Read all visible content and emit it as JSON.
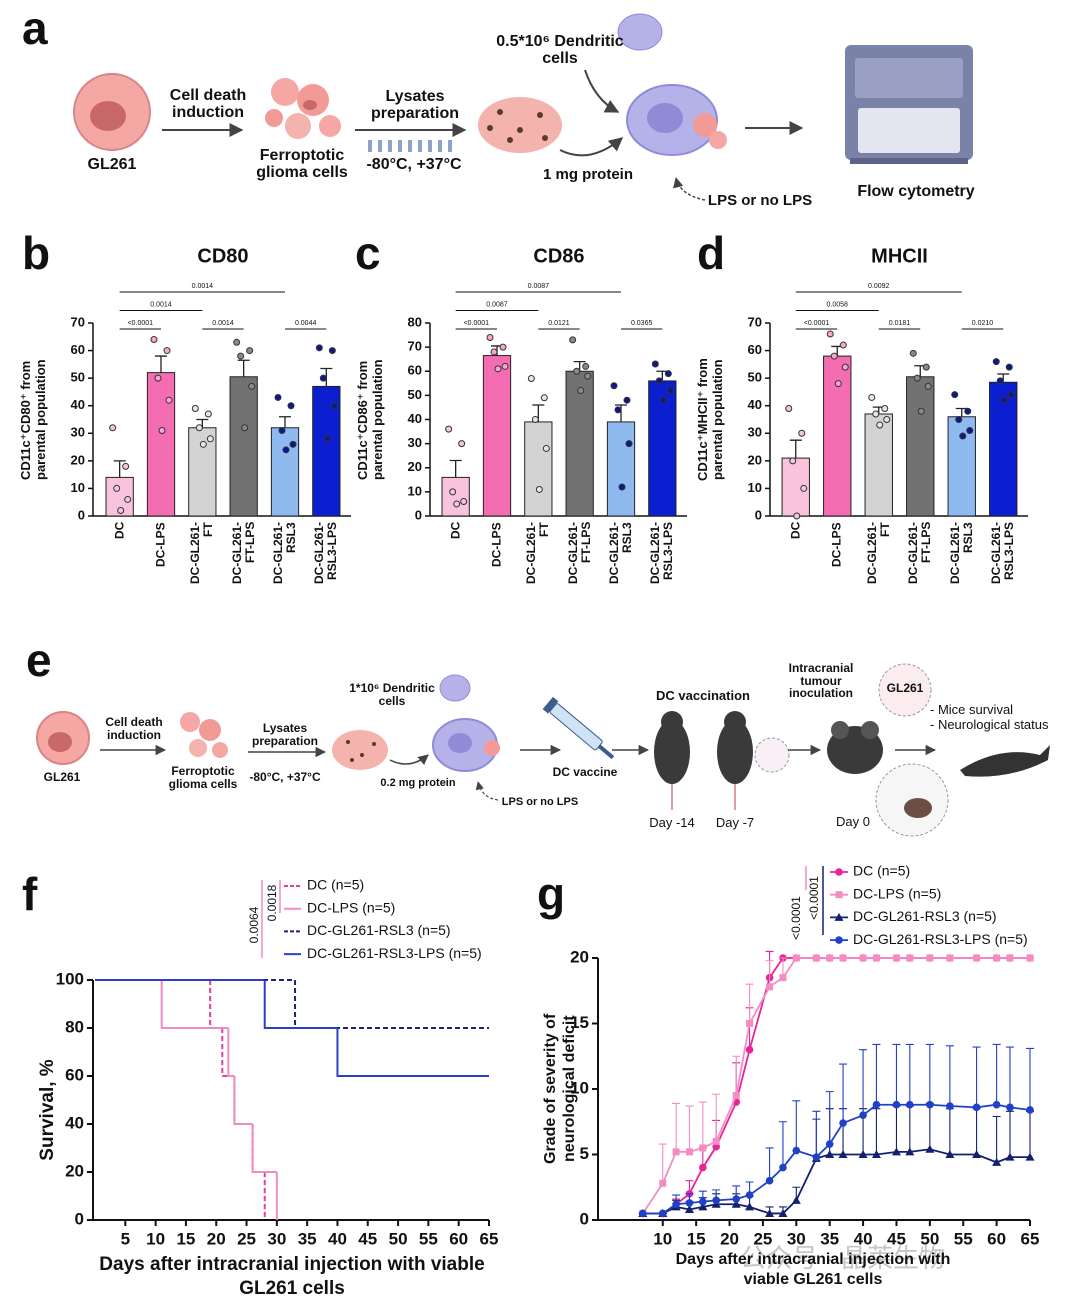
{
  "diagram_a": {
    "letter": "a",
    "gl261": "GL261",
    "step1": "Cell death induction",
    "cells": "Ferroptotic glioma cells",
    "step2": "Lysates preparation",
    "temps": "-80°C, +37°C",
    "dc": "0.5*10⁶ Dendritic cells",
    "protein": "1 mg protein",
    "lps": "LPS or no LPS",
    "readout": "Flow cytometry"
  },
  "diagram_e": {
    "letter": "e",
    "gl261": "GL261",
    "step1": "Cell death induction",
    "cells": "Ferroptotic glioma cells",
    "step2": "Lysates preparation",
    "temps": "-80°C, +37°C",
    "dc": "1*10⁶ Dendritic cells",
    "protein": "0.2 mg protein",
    "lps": "LPS or no LPS",
    "vaccine": "DC vaccine",
    "vaccination": "DC vaccination",
    "day1": "Day -14",
    "day2": "Day -7",
    "inoculation": "Intracranial tumour inoculation",
    "tumour": "GL261",
    "day0": "Day 0",
    "outcome1": "- Mice survival",
    "outcome2": "- Neurological status"
  },
  "chart_data": [
    {
      "letter": "b",
      "type": "bar",
      "title": "CD80",
      "ylabel": "CD11c⁺CD80⁺ from parental population",
      "categories": [
        "DC",
        "DC-LPS",
        "DC-GL261-FT",
        "DC-GL261-FT-LPS",
        "DC-GL261-RSL3",
        "DC-GL261-RSL3-LPS"
      ],
      "values": [
        14,
        52,
        32,
        50.5,
        32,
        47
      ],
      "errors": [
        6,
        6,
        3,
        6,
        4,
        6.5
      ],
      "points": [
        [
          32,
          18,
          10,
          6,
          2
        ],
        [
          64,
          60,
          50,
          42,
          31
        ],
        [
          39,
          37,
          32,
          28,
          26
        ],
        [
          63,
          60,
          58,
          47,
          32
        ],
        [
          43,
          40,
          31,
          26,
          24
        ],
        [
          61,
          60,
          50,
          40,
          28
        ]
      ],
      "colors": [
        "#f7c3dd",
        "#f46db3",
        "#d3d3d3",
        "#727272",
        "#8fbaf0",
        "#0b1fd0"
      ],
      "point_colors": [
        "#f3c6dc",
        "#f7a6cf",
        "#e6e6e6",
        "#8a8a8a",
        "#0a1a8c",
        "#0a1a8c"
      ],
      "ylim": [
        0,
        70
      ],
      "yticks": [
        0,
        10,
        20,
        30,
        40,
        50,
        60,
        70
      ],
      "brackets": [
        {
          "from": "DC",
          "to": "DC-LPS",
          "label": "<0.0001"
        },
        {
          "from": "DC-GL261-FT",
          "to": "DC-GL261-FT-LPS",
          "label": "0.0014"
        },
        {
          "from": "DC-GL261-RSL3",
          "to": "DC-GL261-RSL3-LPS",
          "label": "0.0044"
        },
        {
          "from": "DC",
          "to": "DC-GL261-FT",
          "label": "0.0014"
        },
        {
          "from": "DC",
          "to": "DC-GL261-RSL3",
          "label": "0.0014"
        }
      ]
    },
    {
      "letter": "c",
      "type": "bar",
      "title": "CD86",
      "ylabel": "CD11c⁺CD86⁺ from parental population",
      "categories": [
        "DC",
        "DC-LPS",
        "DC-GL261-FT",
        "DC-GL261-FT-LPS",
        "DC-GL261-RSL3",
        "DC-GL261-RSL3-LPS"
      ],
      "values": [
        16,
        66.5,
        39,
        60,
        39,
        56
      ],
      "errors": [
        7,
        4,
        7,
        4,
        7,
        4
      ],
      "points": [
        [
          36,
          30,
          10,
          6,
          5
        ],
        [
          74,
          70,
          68,
          62,
          61
        ],
        [
          57,
          49,
          40,
          28,
          11
        ],
        [
          73,
          62,
          60,
          58,
          52
        ],
        [
          54,
          48,
          44,
          30,
          12
        ],
        [
          63,
          59,
          56,
          52,
          48
        ]
      ],
      "colors": [
        "#f7c3dd",
        "#f46db3",
        "#d3d3d3",
        "#727272",
        "#8fbaf0",
        "#0b1fd0"
      ],
      "point_colors": [
        "#f3c6dc",
        "#f7a6cf",
        "#e6e6e6",
        "#8a8a8a",
        "#0a1a8c",
        "#0a1a8c"
      ],
      "ylim": [
        0,
        80
      ],
      "yticks": [
        0,
        10,
        20,
        30,
        40,
        50,
        60,
        70,
        80
      ],
      "brackets": [
        {
          "from": "DC",
          "to": "DC-LPS",
          "label": "<0.0001"
        },
        {
          "from": "DC-GL261-FT",
          "to": "DC-GL261-FT-LPS",
          "label": "0.0121"
        },
        {
          "from": "DC-GL261-RSL3",
          "to": "DC-GL261-RSL3-LPS",
          "label": "0.0365"
        },
        {
          "from": "DC",
          "to": "DC-GL261-FT",
          "label": "0.0087"
        },
        {
          "from": "DC",
          "to": "DC-GL261-RSL3",
          "label": "0.0087"
        }
      ]
    },
    {
      "letter": "d",
      "type": "bar",
      "title": "MHCII",
      "ylabel": "CD11c⁺MHCII⁺ from parental population",
      "categories": [
        "DC",
        "DC-LPS",
        "DC-GL261-FT",
        "DC-GL261-FT-LPS",
        "DC-GL261-RSL3",
        "DC-GL261-RSL3-LPS"
      ],
      "values": [
        21,
        58,
        37,
        50.5,
        36,
        48.5
      ],
      "errors": [
        6.5,
        3.5,
        2.5,
        4,
        3,
        3
      ],
      "points": [
        [
          39,
          30,
          20,
          10,
          0
        ],
        [
          66,
          62,
          58,
          54,
          48
        ],
        [
          43,
          39,
          37,
          35,
          33
        ],
        [
          59,
          54,
          50,
          47,
          38
        ],
        [
          44,
          38,
          35,
          31,
          29
        ],
        [
          56,
          54,
          49,
          44,
          42
        ]
      ],
      "colors": [
        "#f7c3dd",
        "#f46db3",
        "#d3d3d3",
        "#727272",
        "#8fbaf0",
        "#0b1fd0"
      ],
      "point_colors": [
        "#f3c6dc",
        "#f7a6cf",
        "#e6e6e6",
        "#8a8a8a",
        "#0a1a8c",
        "#0a1a8c"
      ],
      "ylim": [
        0,
        70
      ],
      "yticks": [
        0,
        10,
        20,
        30,
        40,
        50,
        60,
        70
      ],
      "brackets": [
        {
          "from": "DC",
          "to": "DC-LPS",
          "label": "<0.0001"
        },
        {
          "from": "DC-GL261-FT",
          "to": "DC-GL261-FT-LPS",
          "label": "0.0181"
        },
        {
          "from": "DC-GL261-RSL3",
          "to": "DC-GL261-RSL3-LPS",
          "label": "0.0210"
        },
        {
          "from": "DC",
          "to": "DC-GL261-FT",
          "label": "0.0058"
        },
        {
          "from": "DC",
          "to": "DC-GL261-RSL3",
          "label": "0.0092"
        }
      ]
    },
    {
      "letter": "f",
      "type": "step",
      "xlabel": "Days after intracranial injection with viable GL261 cells",
      "ylabel": "Survival, %",
      "xlim": [
        0,
        65
      ],
      "xticks": [
        5,
        10,
        15,
        20,
        25,
        30,
        35,
        40,
        45,
        50,
        55,
        60,
        65
      ],
      "ylim": [
        0,
        100
      ],
      "yticks": [
        0,
        20,
        40,
        60,
        80,
        100
      ],
      "series": [
        {
          "name": "DC (n=5)",
          "color": "#e0409a",
          "dashed": true,
          "x": [
            0,
            19,
            21,
            23,
            26,
            28
          ],
          "values": [
            100,
            80,
            60,
            40,
            20,
            0
          ]
        },
        {
          "name": "DC-LPS (n=5)",
          "color": "#f08cc4",
          "dashed": false,
          "x": [
            0,
            11,
            22,
            23,
            26,
            30
          ],
          "values": [
            100,
            80,
            60,
            40,
            20,
            0
          ]
        },
        {
          "name": "DC-GL261-RSL3 (n=5)",
          "color": "#1a237e",
          "dashed": true,
          "x": [
            0,
            33,
            65
          ],
          "values": [
            100,
            80,
            80
          ]
        },
        {
          "name": "DC-GL261-RSL3-LPS (n=5)",
          "color": "#2b3fcf",
          "dashed": false,
          "x": [
            0,
            28,
            40,
            65
          ],
          "values": [
            100,
            80,
            60,
            60
          ]
        }
      ],
      "annotations": [
        {
          "label": "0.0064",
          "color": "#f08cc4"
        },
        {
          "label": "0.0018",
          "color": "#f08cc4"
        }
      ]
    },
    {
      "letter": "g",
      "type": "line",
      "xlabel": "Days after intracranial injection with viable GL261 cells",
      "ylabel": "Grade of severity of neurological deficit",
      "xlim": [
        0,
        65
      ],
      "xticks": [
        10,
        15,
        20,
        25,
        30,
        35,
        40,
        45,
        50,
        55,
        60,
        65
      ],
      "ylim": [
        0,
        20
      ],
      "yticks": [
        0,
        5,
        10,
        15,
        20
      ],
      "x": [
        7,
        10,
        12,
        14,
        16,
        18,
        21,
        23,
        26,
        28,
        30,
        33,
        35,
        37,
        40,
        42,
        45,
        47,
        50,
        53,
        57,
        60,
        62,
        65
      ],
      "series": [
        {
          "name": "DC (n=5)",
          "color": "#e8239b",
          "marker": "circle",
          "values": [
            0.5,
            0.5,
            1.2,
            2,
            4,
            5.6,
            9,
            13,
            18.5,
            20,
            20,
            20,
            20,
            20,
            20,
            20,
            20,
            20,
            20,
            20,
            20,
            20,
            20,
            20
          ],
          "errors": [
            0,
            0,
            0.4,
            1,
            1.5,
            2,
            3,
            3.2,
            2,
            0,
            0,
            0,
            0,
            0,
            0,
            0,
            0,
            0,
            0,
            0,
            0,
            0,
            0,
            0
          ]
        },
        {
          "name": "DC-LPS (n=5)",
          "color": "#f48cc3",
          "marker": "square",
          "values": [
            0.5,
            2.8,
            5.2,
            5.2,
            5.5,
            6,
            9.5,
            15,
            17.8,
            18.5,
            20,
            20,
            20,
            20,
            20,
            20,
            20,
            20,
            20,
            20,
            20,
            20,
            20,
            20
          ],
          "errors": [
            0,
            3,
            3.7,
            3.5,
            3.5,
            3.6,
            3,
            3,
            2,
            1.5,
            0,
            0,
            0,
            0,
            0,
            0,
            0,
            0,
            0,
            0,
            0,
            0,
            0,
            0
          ]
        },
        {
          "name": "DC-GL261-RSL3 (n=5)",
          "color": "#14206e",
          "marker": "triangle",
          "values": [
            0.5,
            0.5,
            1,
            0.8,
            1,
            1.2,
            1.2,
            1,
            0.5,
            0.5,
            1.5,
            4.7,
            5,
            5,
            5,
            5,
            5.2,
            5.2,
            5.4,
            5,
            5,
            4.4,
            4.8,
            4.8
          ],
          "errors": [
            0,
            0,
            0.5,
            0.6,
            0.7,
            0.8,
            0.8,
            0.8,
            0.5,
            0.5,
            1,
            3,
            3.5,
            3.5,
            3.5,
            3.5,
            3.5,
            3.5,
            3.5,
            3.5,
            3.5,
            3.5,
            3.5,
            3.5
          ]
        },
        {
          "name": "DC-GL261-RSL3-LPS (n=5)",
          "color": "#2040c8",
          "marker": "circle",
          "values": [
            0.5,
            0.5,
            1.2,
            1.3,
            1.4,
            1.5,
            1.6,
            1.9,
            3,
            4,
            5.3,
            4.8,
            5.8,
            7.4,
            8,
            8.8,
            8.8,
            8.8,
            8.8,
            8.7,
            8.6,
            8.8,
            8.6,
            8.4
          ],
          "errors": [
            0,
            0,
            0.7,
            0.7,
            0.8,
            0.8,
            1,
            1,
            2.5,
            3.5,
            3.8,
            3.5,
            4,
            4.5,
            5,
            4.6,
            4.6,
            4.6,
            4.6,
            4.6,
            4.6,
            4.6,
            4.6,
            4.7
          ]
        }
      ],
      "annotations": [
        {
          "label": "<0.0001",
          "color": "#f08cc4"
        },
        {
          "label": "<0.0001",
          "color": "#f08cc4"
        }
      ]
    }
  ],
  "watermark": "公众号 · 晶莱生物"
}
